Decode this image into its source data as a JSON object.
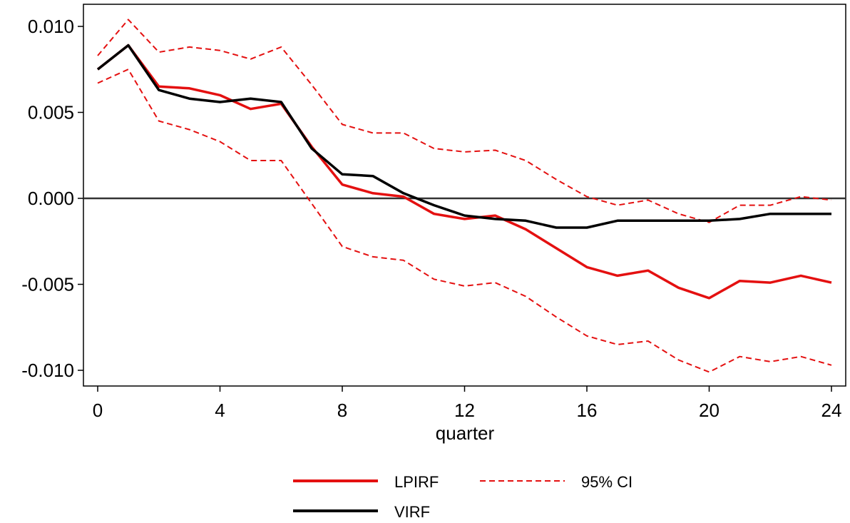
{
  "chart_data": {
    "type": "line",
    "xlabel": "quarter",
    "ylabel": "",
    "xlim": [
      0,
      24
    ],
    "ylim": [
      -0.01,
      0.01
    ],
    "x_ticks": [
      0,
      4,
      8,
      12,
      16,
      20,
      24
    ],
    "x_tick_labels": [
      "0",
      "4",
      "8",
      "12",
      "16",
      "20",
      "24"
    ],
    "y_ticks": [
      0.01,
      0.005,
      0.0,
      -0.005,
      -0.01
    ],
    "y_tick_labels": [
      "0.010",
      "0.005",
      "0.000",
      "-0.005",
      "-0.010"
    ],
    "zero_line": true,
    "grid": false,
    "legend_position": "bottom",
    "x": [
      0,
      1,
      2,
      3,
      4,
      5,
      6,
      7,
      8,
      9,
      10,
      11,
      12,
      13,
      14,
      15,
      16,
      17,
      18,
      19,
      20,
      21,
      22,
      23,
      24
    ],
    "series": [
      {
        "name": "LPIRF",
        "color": "#e41010",
        "style": "solid",
        "values": [
          0.0075,
          0.0089,
          0.0065,
          0.0064,
          0.006,
          0.0052,
          0.0055,
          0.003,
          0.0008,
          0.0003,
          0.0001,
          -0.0009,
          -0.0012,
          -0.001,
          -0.0018,
          -0.0029,
          -0.004,
          -0.0045,
          -0.0042,
          -0.0052,
          -0.0058,
          -0.0048,
          -0.0049,
          -0.0045,
          -0.0049
        ]
      },
      {
        "name": "95% CI",
        "color": "#e41010",
        "style": "dashed",
        "values": [
          0.0083,
          0.0104,
          0.0085,
          0.0088,
          0.0086,
          0.0081,
          0.0088,
          0.0066,
          0.0043,
          0.0038,
          0.0038,
          0.0029,
          0.0027,
          0.0028,
          0.0022,
          0.0011,
          0.0001,
          -0.0004,
          -0.0001,
          -0.0009,
          -0.0014,
          -0.0004,
          -0.0004,
          0.0001,
          -0.0001
        ]
      },
      {
        "name": "95% CI lower",
        "legend": false,
        "color": "#e41010",
        "style": "dashed",
        "values": [
          0.0067,
          0.0075,
          0.0045,
          0.004,
          0.0033,
          0.0022,
          0.0022,
          -0.0003,
          -0.0028,
          -0.0034,
          -0.0036,
          -0.0047,
          -0.0051,
          -0.0049,
          -0.0057,
          -0.0069,
          -0.008,
          -0.0085,
          -0.0083,
          -0.0094,
          -0.0101,
          -0.0092,
          -0.0095,
          -0.0092,
          -0.0097
        ]
      },
      {
        "name": "VIRF",
        "color": "#000000",
        "style": "solid",
        "values": [
          0.0075,
          0.0089,
          0.0063,
          0.0058,
          0.0056,
          0.0058,
          0.0056,
          0.0029,
          0.0014,
          0.0013,
          0.0003,
          -0.0004,
          -0.001,
          -0.0012,
          -0.0013,
          -0.0017,
          -0.0017,
          -0.0013,
          -0.0013,
          -0.0013,
          -0.0013,
          -0.0012,
          -0.0009,
          -0.0009,
          -0.0009
        ]
      }
    ],
    "legend": [
      {
        "label": "LPIRF",
        "color": "#e41010",
        "style": "solid"
      },
      {
        "label": "95% CI",
        "color": "#e41010",
        "style": "dashed"
      },
      {
        "label": "VIRF",
        "color": "#000000",
        "style": "solid"
      }
    ]
  }
}
